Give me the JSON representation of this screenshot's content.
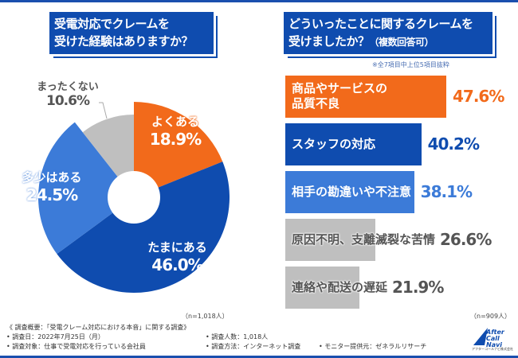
{
  "left_title": {
    "line1": "受電対応でクレームを",
    "line2": "受けた経験はありますか？"
  },
  "right_title": {
    "line1": "どういったことに関するクレームを",
    "line2": "受けましたか？",
    "suffix": "（複数回答可）"
  },
  "right_note": "※全7項目中上位5項目抜粋",
  "left_n": "（n=1,018人）",
  "right_n": "（n=909人）",
  "chart_data": [
    {
      "type": "pie",
      "donut": true,
      "slices": [
        {
          "label": "よくある",
          "value": 18.9,
          "display": "18.9%",
          "color": "#f26a1b"
        },
        {
          "label": "たまにある",
          "value": 46.0,
          "display": "46.0%",
          "color": "#0f4caf"
        },
        {
          "label": "多少はある",
          "value": 24.5,
          "display": "24.5%",
          "color": "#3c7bd8"
        },
        {
          "label": "まったくない",
          "value": 10.6,
          "display": "10.6%",
          "color": "#bfbfbf"
        }
      ]
    },
    {
      "type": "bar",
      "orientation": "horizontal",
      "bars": [
        {
          "label": "商品やサービスの品質不良",
          "line1": "商品やサービスの",
          "line2": "品質不良",
          "value": 47.6,
          "display": "47.6%",
          "color": "#f26a1b"
        },
        {
          "label": "スタッフの対応",
          "value": 40.2,
          "display": "40.2%",
          "color": "#0f4caf"
        },
        {
          "label": "相手の勘違いや不注意",
          "value": 38.1,
          "display": "38.1%",
          "color": "#3c7bd8"
        },
        {
          "label": "原因不明、支離滅裂な苦情",
          "value": 26.6,
          "display": "26.6%",
          "color": "#bfbfbf"
        },
        {
          "label": "連絡や配送の遅延",
          "value": 21.9,
          "display": "21.9%",
          "color": "#bfbfbf"
        }
      ]
    }
  ],
  "footer": {
    "overview": "《 調査概要：「受電クレーム対応における本音」に関する調査》",
    "date": "• 調査日：2022年7月25日（月）",
    "target": "• 調査対象：仕事で受電対応を行っている会社員",
    "count": "• 調査人数：1,018人",
    "method": "• 調査方法：インターネット調査",
    "monitor": "• モニター提供元：ゼネラルリサーチ"
  },
  "logo": {
    "text1": "After",
    "text2": "Call Navi",
    "sub": "アフターコールナビ株式会社"
  }
}
